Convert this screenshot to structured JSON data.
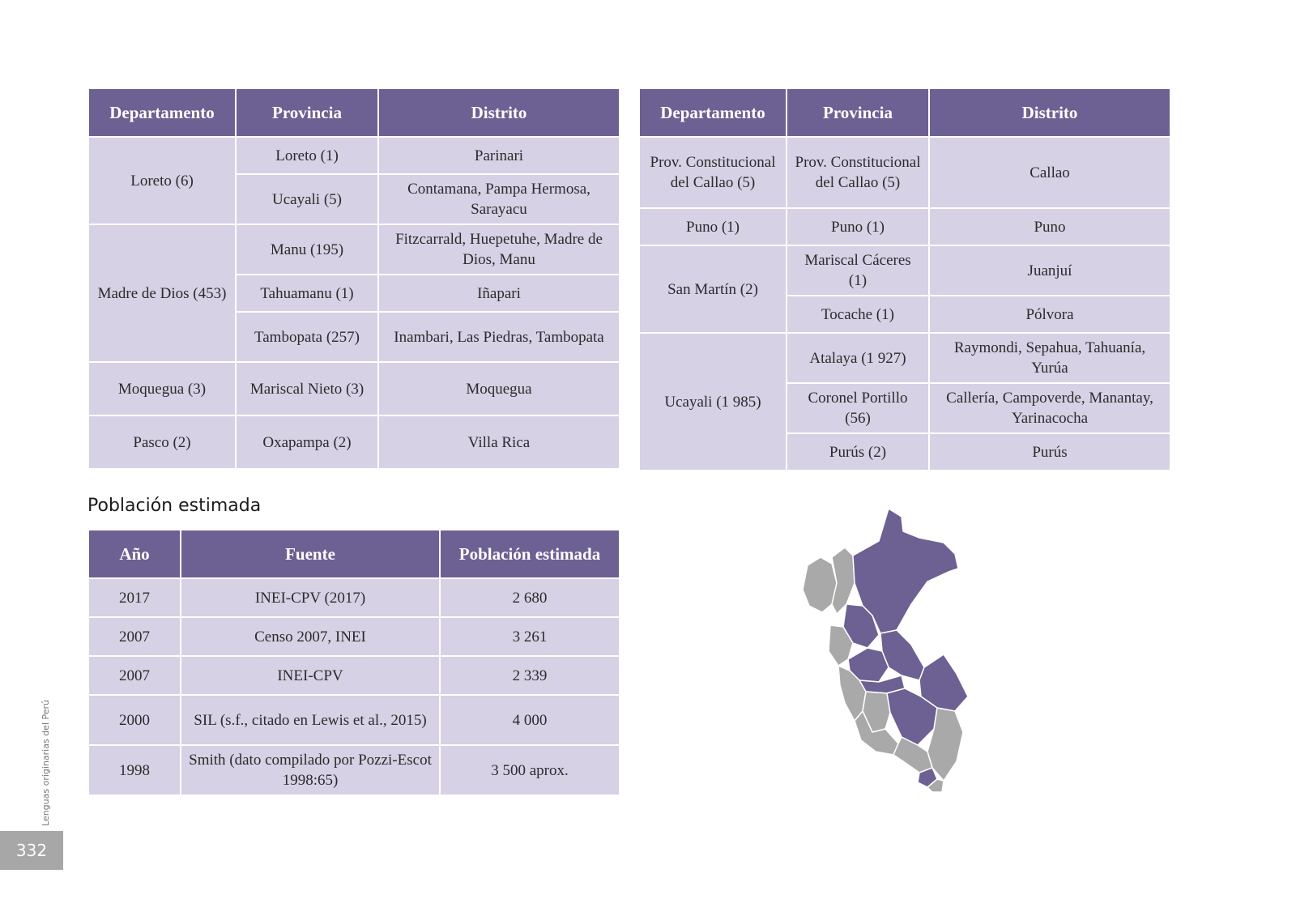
{
  "headers": {
    "departamento": "Departamento",
    "provincia": "Provincia",
    "distrito": "Distrito"
  },
  "left_rows": {
    "loreto": "Loreto (6)",
    "loreto_p1": "Loreto (1)",
    "loreto_d1": "Parinari",
    "loreto_p2": "Ucayali (5)",
    "loreto_d2": "Contamana, Pampa Hermosa, Sarayacu",
    "mdd": "Madre de Dios (453)",
    "mdd_p1": "Manu (195)",
    "mdd_d1": "Fitzcarrald, Huepetuhe, Madre de Dios, Manu",
    "mdd_p2": "Tahuamanu (1)",
    "mdd_d2": "Iñapari",
    "mdd_p3": "Tambopata (257)",
    "mdd_d3": "Inambari, Las Piedras, Tambopata",
    "moq": "Moquegua (3)",
    "moq_p1": "Mariscal Nieto (3)",
    "moq_d1": "Moquegua",
    "pasco": "Pasco (2)",
    "pasco_p1": "Oxapampa (2)",
    "pasco_d1": "Villa Rica"
  },
  "right_rows": {
    "callao": "Prov. Constitucional del Callao (5)",
    "callao_p1": "Prov. Constitucional del Callao (5)",
    "callao_d1": "Callao",
    "puno": "Puno (1)",
    "puno_p1": "Puno (1)",
    "puno_d1": "Puno",
    "sm": "San Martín (2)",
    "sm_p1": "Mariscal Cáceres (1)",
    "sm_d1": "Juanjuí",
    "sm_p2": "Tocache (1)",
    "sm_d2": "Pólvora",
    "uca": "Ucayali (1 985)",
    "uca_p1": "Atalaya (1 927)",
    "uca_d1": "Raymondi, Sepahua, Tahuanía, Yurúa",
    "uca_p2": "Coronel Portillo (56)",
    "uca_d2": "Callería, Campoverde, Manantay, Yarinacocha",
    "uca_p3": "Purús (2)",
    "uca_d3": "Purús"
  },
  "population": {
    "heading": "Población estimada",
    "headers": {
      "anio": "Año",
      "fuente": "Fuente",
      "poblacion": "Población estimada"
    },
    "rows": [
      {
        "anio": "2017",
        "fuente": "INEI-CPV (2017)",
        "poblacion": "2 680"
      },
      {
        "anio": "2007",
        "fuente": "Censo 2007, INEI",
        "poblacion": "3 261"
      },
      {
        "anio": "2007",
        "fuente": "INEI-CPV",
        "poblacion": "2 339"
      },
      {
        "anio": "2000",
        "fuente": "SIL (s.f., citado en Lewis et al., 2015)",
        "poblacion": "4 000"
      },
      {
        "anio": "1998",
        "fuente": "Smith (dato compilado por Pozzi-Escot 1998:65)",
        "poblacion": "3 500 aprox."
      }
    ]
  },
  "footer": {
    "side_label": "Lenguas originarias del Perú",
    "page_number": "332"
  },
  "colors": {
    "header_purple": "#6d6093",
    "cell_lavender": "#d6d1e4",
    "map_highlight": "#6d6093",
    "map_gray": "#a9a9a9"
  }
}
